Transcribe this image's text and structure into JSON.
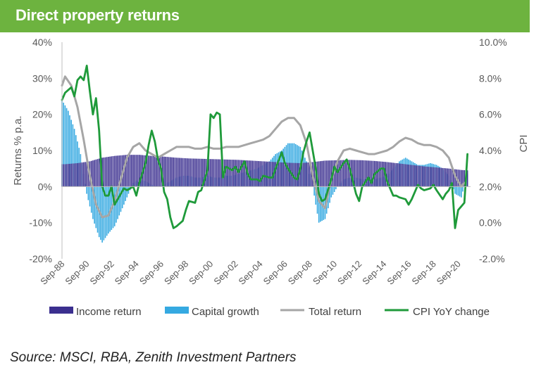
{
  "header": {
    "title": "Direct property returns"
  },
  "source": "Source: MSCI, RBA, Zenith Investment Partners",
  "colors": {
    "header_bg": "#6db33f",
    "income": "#3b2f8f",
    "capital": "#35a9e1",
    "total": "#a6a6a6",
    "cpi": "#1f9a3a"
  },
  "chart_data": {
    "type": "bar",
    "title": "Direct property returns",
    "ylabel": "Returns % p.a.",
    "y2label": "CPI",
    "ylim": [
      -20,
      40
    ],
    "y2lim": [
      -2,
      10
    ],
    "y_ticks": [
      "40%",
      "30%",
      "20%",
      "10%",
      "0%",
      "-10%",
      "-20%"
    ],
    "y2_ticks": [
      "10.0%",
      "8.0%",
      "6.0%",
      "4.0%",
      "2.0%",
      "0.0%",
      "-2.0%"
    ],
    "x_ticks": [
      "Sep-88",
      "Sep-90",
      "Sep-92",
      "Sep-94",
      "Sep-96",
      "Sep-98",
      "Sep-00",
      "Sep-02",
      "Sep-04",
      "Sep-06",
      "Sep-08",
      "Sep-10",
      "Sep-12",
      "Sep-14",
      "Sep-16",
      "Sep-18",
      "Sep-20"
    ],
    "x_range": [
      1988.5,
      2021.5
    ],
    "grid": false,
    "legend_position": "bottom",
    "series": [
      {
        "name": "Income return",
        "kind": "bar",
        "axis": "left",
        "points": [
          [
            1988.75,
            6.2
          ],
          [
            1989.75,
            6.5
          ],
          [
            1990.75,
            7.0
          ],
          [
            1991.75,
            8.0
          ],
          [
            1992.75,
            8.5
          ],
          [
            1993.75,
            8.8
          ],
          [
            1994.75,
            8.8
          ],
          [
            1995.75,
            8.5
          ],
          [
            1996.75,
            8.3
          ],
          [
            1997.75,
            8.0
          ],
          [
            1998.75,
            7.8
          ],
          [
            1999.75,
            7.7
          ],
          [
            2000.75,
            7.6
          ],
          [
            2001.75,
            7.5
          ],
          [
            2002.75,
            7.4
          ],
          [
            2003.75,
            7.2
          ],
          [
            2004.75,
            7.0
          ],
          [
            2005.75,
            6.8
          ],
          [
            2006.75,
            6.6
          ],
          [
            2007.75,
            6.5
          ],
          [
            2008.75,
            6.8
          ],
          [
            2009.75,
            7.2
          ],
          [
            2010.75,
            7.3
          ],
          [
            2011.75,
            7.4
          ],
          [
            2012.75,
            7.3
          ],
          [
            2013.75,
            7.1
          ],
          [
            2014.75,
            6.8
          ],
          [
            2015.75,
            6.4
          ],
          [
            2016.75,
            6.0
          ],
          [
            2017.75,
            5.6
          ],
          [
            2018.75,
            5.3
          ],
          [
            2019.75,
            5.0
          ],
          [
            2020.75,
            4.6
          ],
          [
            2021.25,
            4.5
          ]
        ]
      },
      {
        "name": "Capital growth",
        "kind": "bar",
        "axis": "left",
        "points": [
          [
            1988.5,
            24
          ],
          [
            1989.0,
            21
          ],
          [
            1989.5,
            16
          ],
          [
            1990.0,
            9
          ],
          [
            1990.5,
            -2
          ],
          [
            1991.0,
            -9
          ],
          [
            1991.5,
            -14
          ],
          [
            1991.75,
            -15.5
          ],
          [
            1992.25,
            -13
          ],
          [
            1992.75,
            -11
          ],
          [
            1993.25,
            -7
          ],
          [
            1993.75,
            -3
          ],
          [
            1994.25,
            1
          ],
          [
            1994.75,
            2
          ],
          [
            1995.25,
            1.5
          ],
          [
            1995.75,
            0.5
          ],
          [
            1996.25,
            0
          ],
          [
            1996.75,
            0.5
          ],
          [
            1997.25,
            1.5
          ],
          [
            1997.75,
            2.5
          ],
          [
            1998.25,
            3
          ],
          [
            1998.75,
            3
          ],
          [
            1999.25,
            2.5
          ],
          [
            1999.75,
            2.5
          ],
          [
            2000.25,
            3
          ],
          [
            2000.75,
            2.5
          ],
          [
            2001.25,
            2.5
          ],
          [
            2001.75,
            3
          ],
          [
            2002.25,
            3
          ],
          [
            2002.75,
            3.5
          ],
          [
            2003.25,
            4
          ],
          [
            2003.75,
            4.5
          ],
          [
            2004.25,
            5
          ],
          [
            2004.75,
            6
          ],
          [
            2005.25,
            7
          ],
          [
            2005.75,
            9
          ],
          [
            2006.25,
            10
          ],
          [
            2006.75,
            12
          ],
          [
            2007.25,
            12
          ],
          [
            2007.75,
            11
          ],
          [
            2008.25,
            7
          ],
          [
            2008.75,
            0
          ],
          [
            2009.25,
            -10
          ],
          [
            2009.75,
            -9
          ],
          [
            2010.25,
            -3
          ],
          [
            2010.75,
            0
          ],
          [
            2011.25,
            2
          ],
          [
            2011.75,
            2.5
          ],
          [
            2012.25,
            2.5
          ],
          [
            2012.75,
            2
          ],
          [
            2013.25,
            2
          ],
          [
            2013.75,
            2
          ],
          [
            2014.25,
            2.5
          ],
          [
            2014.75,
            3
          ],
          [
            2015.25,
            5
          ],
          [
            2015.75,
            7
          ],
          [
            2016.25,
            8
          ],
          [
            2016.75,
            7
          ],
          [
            2017.25,
            6
          ],
          [
            2017.75,
            6
          ],
          [
            2018.25,
            6.5
          ],
          [
            2018.75,
            6
          ],
          [
            2019.25,
            5
          ],
          [
            2019.75,
            3
          ],
          [
            2020.25,
            -2
          ],
          [
            2020.75,
            -3
          ],
          [
            2021.25,
            3.5
          ]
        ]
      },
      {
        "name": "Total return",
        "kind": "line",
        "axis": "left",
        "points": [
          [
            1988.5,
            28
          ],
          [
            1988.75,
            30.5
          ],
          [
            1989.25,
            28
          ],
          [
            1989.75,
            22
          ],
          [
            1990.25,
            13
          ],
          [
            1990.75,
            3
          ],
          [
            1991.25,
            -5
          ],
          [
            1991.75,
            -8.5
          ],
          [
            1992.25,
            -8
          ],
          [
            1992.75,
            -4
          ],
          [
            1993.25,
            2
          ],
          [
            1993.75,
            8
          ],
          [
            1994.25,
            11
          ],
          [
            1994.75,
            12
          ],
          [
            1995.25,
            10
          ],
          [
            1995.75,
            9
          ],
          [
            1996.25,
            8
          ],
          [
            1996.75,
            9
          ],
          [
            1997.25,
            10
          ],
          [
            1997.75,
            11
          ],
          [
            1998.25,
            11
          ],
          [
            1998.75,
            11
          ],
          [
            1999.25,
            10.5
          ],
          [
            1999.75,
            10.5
          ],
          [
            2000.25,
            11
          ],
          [
            2000.75,
            10.5
          ],
          [
            2001.25,
            10.5
          ],
          [
            2001.75,
            11
          ],
          [
            2002.25,
            11
          ],
          [
            2002.75,
            11
          ],
          [
            2003.25,
            11.5
          ],
          [
            2003.75,
            12
          ],
          [
            2004.25,
            12.5
          ],
          [
            2004.75,
            13
          ],
          [
            2005.25,
            14
          ],
          [
            2005.75,
            16
          ],
          [
            2006.25,
            18
          ],
          [
            2006.75,
            19
          ],
          [
            2007.25,
            19
          ],
          [
            2007.75,
            17
          ],
          [
            2008.25,
            12
          ],
          [
            2008.75,
            3
          ],
          [
            2009.25,
            -4
          ],
          [
            2009.75,
            -6
          ],
          [
            2010.25,
            2
          ],
          [
            2010.75,
            7
          ],
          [
            2011.25,
            10
          ],
          [
            2011.75,
            10.5
          ],
          [
            2012.25,
            10
          ],
          [
            2012.75,
            9.5
          ],
          [
            2013.25,
            9
          ],
          [
            2013.75,
            9
          ],
          [
            2014.25,
            9.5
          ],
          [
            2014.75,
            10
          ],
          [
            2015.25,
            11
          ],
          [
            2015.75,
            12.5
          ],
          [
            2016.25,
            13.5
          ],
          [
            2016.75,
            13
          ],
          [
            2017.25,
            12
          ],
          [
            2017.75,
            11.5
          ],
          [
            2018.25,
            11.5
          ],
          [
            2018.75,
            11
          ],
          [
            2019.25,
            10
          ],
          [
            2019.75,
            8
          ],
          [
            2020.25,
            3
          ],
          [
            2020.75,
            0
          ],
          [
            2021.0,
            1
          ]
        ]
      },
      {
        "name": "CPI YoY change",
        "kind": "line",
        "axis": "right",
        "points": [
          [
            1988.5,
            6.8
          ],
          [
            1988.75,
            7.2
          ],
          [
            1989.25,
            7.5
          ],
          [
            1989.5,
            7.0
          ],
          [
            1989.75,
            7.9
          ],
          [
            1990.0,
            8.1
          ],
          [
            1990.25,
            7.9
          ],
          [
            1990.5,
            8.7
          ],
          [
            1990.75,
            7.3
          ],
          [
            1991.0,
            6.0
          ],
          [
            1991.25,
            6.9
          ],
          [
            1991.5,
            5.1
          ],
          [
            1991.75,
            2.0
          ],
          [
            1992.0,
            1.5
          ],
          [
            1992.25,
            1.5
          ],
          [
            1992.5,
            2.0
          ],
          [
            1992.75,
            1.0
          ],
          [
            1993.25,
            1.6
          ],
          [
            1993.5,
            1.9
          ],
          [
            1993.75,
            1.8
          ],
          [
            1994.25,
            2.0
          ],
          [
            1994.5,
            1.5
          ],
          [
            1994.75,
            2.2
          ],
          [
            1995.25,
            3.3
          ],
          [
            1995.5,
            4.3
          ],
          [
            1995.75,
            5.1
          ],
          [
            1996.0,
            4.5
          ],
          [
            1996.25,
            3.5
          ],
          [
            1996.5,
            3.0
          ],
          [
            1996.75,
            1.7
          ],
          [
            1997.0,
            1.3
          ],
          [
            1997.25,
            0.3
          ],
          [
            1997.5,
            -0.3
          ],
          [
            1997.75,
            -0.2
          ],
          [
            1998.25,
            0.1
          ],
          [
            1998.5,
            0.7
          ],
          [
            1998.75,
            1.2
          ],
          [
            1999.25,
            1.1
          ],
          [
            1999.5,
            1.7
          ],
          [
            1999.75,
            1.8
          ],
          [
            2000.25,
            2.9
          ],
          [
            2000.5,
            6.0
          ],
          [
            2000.75,
            5.8
          ],
          [
            2001.0,
            6.1
          ],
          [
            2001.25,
            6.0
          ],
          [
            2001.5,
            2.5
          ],
          [
            2001.75,
            3.1
          ],
          [
            2002.25,
            2.9
          ],
          [
            2002.5,
            3.1
          ],
          [
            2002.75,
            2.8
          ],
          [
            2003.25,
            3.4
          ],
          [
            2003.5,
            2.7
          ],
          [
            2003.75,
            2.4
          ],
          [
            2004.25,
            2.4
          ],
          [
            2004.5,
            2.3
          ],
          [
            2004.75,
            2.6
          ],
          [
            2005.25,
            2.5
          ],
          [
            2005.5,
            2.5
          ],
          [
            2005.75,
            3.0
          ],
          [
            2006.25,
            3.9
          ],
          [
            2006.5,
            3.3
          ],
          [
            2006.75,
            3.0
          ],
          [
            2007.25,
            2.5
          ],
          [
            2007.5,
            2.4
          ],
          [
            2007.75,
            3.0
          ],
          [
            2008.0,
            3.9
          ],
          [
            2008.25,
            4.5
          ],
          [
            2008.5,
            5.0
          ],
          [
            2008.75,
            4.0
          ],
          [
            2009.0,
            3.0
          ],
          [
            2009.25,
            1.6
          ],
          [
            2009.5,
            1.2
          ],
          [
            2009.75,
            1.3
          ],
          [
            2010.25,
            2.4
          ],
          [
            2010.5,
            3.1
          ],
          [
            2010.75,
            2.8
          ],
          [
            2011.25,
            3.3
          ],
          [
            2011.5,
            3.5
          ],
          [
            2011.75,
            3.0
          ],
          [
            2012.25,
            1.6
          ],
          [
            2012.5,
            1.2
          ],
          [
            2012.75,
            2.0
          ],
          [
            2013.25,
            2.5
          ],
          [
            2013.5,
            2.2
          ],
          [
            2013.75,
            2.7
          ],
          [
            2014.25,
            3.0
          ],
          [
            2014.5,
            3.0
          ],
          [
            2014.75,
            2.3
          ],
          [
            2015.25,
            1.5
          ],
          [
            2015.5,
            1.5
          ],
          [
            2015.75,
            1.4
          ],
          [
            2016.25,
            1.3
          ],
          [
            2016.5,
            1.0
          ],
          [
            2016.75,
            1.3
          ],
          [
            2017.25,
            2.1
          ],
          [
            2017.5,
            1.9
          ],
          [
            2017.75,
            1.8
          ],
          [
            2018.25,
            1.9
          ],
          [
            2018.5,
            2.1
          ],
          [
            2018.75,
            1.8
          ],
          [
            2019.25,
            1.3
          ],
          [
            2019.5,
            1.6
          ],
          [
            2019.75,
            1.8
          ],
          [
            2020.0,
            2.2
          ],
          [
            2020.25,
            -0.3
          ],
          [
            2020.5,
            0.7
          ],
          [
            2020.75,
            0.9
          ],
          [
            2021.0,
            1.1
          ],
          [
            2021.25,
            3.8
          ]
        ]
      }
    ]
  }
}
